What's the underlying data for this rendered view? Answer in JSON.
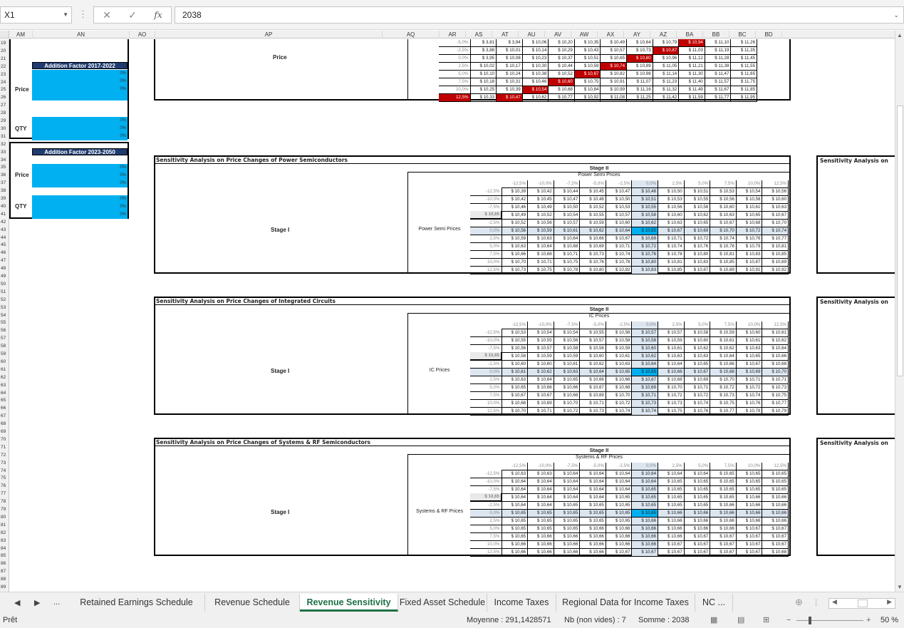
{
  "namebox": "X1",
  "formula": "2038",
  "formula_icons": {
    "cancel": "✕",
    "enter": "✓",
    "fx": "fx"
  },
  "columns": [
    "AM",
    "AN",
    "AO",
    "AP",
    "AQ",
    "AR",
    "AS",
    "AT",
    "AU",
    "AV",
    "AW",
    "AX",
    "AY",
    "AZ",
    "BA",
    "BB",
    "BC",
    "BD"
  ],
  "rows_start": 19,
  "rows_end": 89,
  "left": {
    "price_top": "Price",
    "addition1": "Addition Factor 2017-2022",
    "addition2": "Addition Factor 2023-2050",
    "price": "Price",
    "qty": "QTY",
    "zero": "0%"
  },
  "top": {
    "label": "Price",
    "rowhdr": [
      "-5,0%",
      "-2,5%",
      "0,0%",
      "2,5%",
      "5,0%",
      "7,5%",
      "10,0%",
      "12,5%"
    ],
    "rows": [
      [
        "$ 3,81",
        "$ 3,94",
        "$ 10,06",
        "$ 10,20",
        "$ 10,35",
        "$ 10,49",
        "$ 10,64",
        "$ 10,79",
        "$ 10,94",
        "$ 11,10",
        "$ 11,26"
      ],
      [
        "$ 3,88",
        "$ 10,01",
        "$ 10,14",
        "$ 10,29",
        "$ 10,43",
        "$ 10,57",
        "$ 10,73",
        "$ 10,87",
        "$ 11,03",
        "$ 11,19",
        "$ 11,35"
      ],
      [
        "$ 3,95",
        "$ 10,08",
        "$ 10,23",
        "$ 10,37",
        "$ 10,51",
        "$ 10,65",
        "$ 10,80",
        "$ 10,96",
        "$ 11,12",
        "$ 11,28",
        "$ 11,45"
      ],
      [
        "$ 10,02",
        "$ 10,17",
        "$ 10,30",
        "$ 10,44",
        "$ 10,59",
        "$ 10,74",
        "$ 10,89",
        "$ 11,05",
        "$ 11,21",
        "$ 11,38",
        "$ 11,55"
      ],
      [
        "$ 10,10",
        "$ 10,24",
        "$ 10,38",
        "$ 10,52",
        "$ 10,67",
        "$ 10,82",
        "$ 10,98",
        "$ 11,14",
        "$ 11,30",
        "$ 11,47",
        "$ 11,65"
      ],
      [
        "$ 10,18",
        "$ 10,31",
        "$ 10,46",
        "$ 10,60",
        "$ 10,75",
        "$ 10,91",
        "$ 11,07",
        "$ 11,23",
        "$ 11,40",
        "$ 11,57",
        "$ 11,75"
      ],
      [
        "$ 10,25",
        "$ 10,39",
        "$ 10,54",
        "$ 10,68",
        "$ 10,84",
        "$ 10,99",
        "$ 11,16",
        "$ 11,32",
        "$ 11,49",
        "$ 11,67",
        "$ 11,85"
      ],
      [
        "$ 10,33",
        "$ 10,47",
        "$ 10,62",
        "$ 10,77",
        "$ 10,92",
        "$ 11,08",
        "$ 11,25",
        "$ 11,42",
        "$ 11,59",
        "$ 11,77",
        "$ 11,95"
      ]
    ],
    "red": [
      [
        0,
        8
      ],
      [
        1,
        7
      ],
      [
        2,
        6
      ],
      [
        3,
        5
      ],
      [
        4,
        4
      ],
      [
        5,
        3
      ],
      [
        6,
        2
      ],
      [
        7,
        1
      ]
    ]
  },
  "sections": [
    {
      "title": "Sensitivity Analysis on Price Changes of Power Semiconductors",
      "stage2": "Stage II",
      "sub": "Power Semi Prices",
      "stage1": "Stage I",
      "side": "Power Semi Prices",
      "corner": "$ 10,65",
      "colhdr": [
        "-12,5%",
        "-10,0%",
        "-7,5%",
        "-5,0%",
        "-2,5%",
        "0,0%",
        "2,5%",
        "5,0%",
        "7,5%",
        "10,0%",
        "12,5%"
      ],
      "rowhdr": [
        "-12,5%",
        "-10,0%",
        "-7,5%",
        "-5,0%",
        "-2,5%",
        "0,0%",
        "2,5%",
        "5,0%",
        "7,5%",
        "10,0%",
        "12,5%"
      ],
      "rows": [
        [
          "$ 10,39",
          "$ 10,42",
          "$ 10,44",
          "$ 10,45",
          "$ 10,47",
          "$ 10,48",
          "$ 10,50",
          "$ 10,51",
          "$ 10,53",
          "$ 10,54",
          "$ 10,56"
        ],
        [
          "$ 10,42",
          "$ 10,45",
          "$ 10,47",
          "$ 10,48",
          "$ 10,50",
          "$ 10,51",
          "$ 10,53",
          "$ 10,55",
          "$ 10,56",
          "$ 10,58",
          "$ 10,60"
        ],
        [
          "$ 10,46",
          "$ 10,49",
          "$ 10,50",
          "$ 10,52",
          "$ 10,53",
          "$ 10,55",
          "$ 10,56",
          "$ 10,58",
          "$ 10,60",
          "$ 10,61",
          "$ 10,63"
        ],
        [
          "$ 10,49",
          "$ 10,52",
          "$ 10,54",
          "$ 10,55",
          "$ 10,57",
          "$ 10,58",
          "$ 10,60",
          "$ 10,62",
          "$ 10,63",
          "$ 10,65",
          "$ 10,67"
        ],
        [
          "$ 10,52",
          "$ 10,56",
          "$ 10,57",
          "$ 10,59",
          "$ 10,60",
          "$ 10,62",
          "$ 10,63",
          "$ 10,65",
          "$ 10,67",
          "$ 10,68",
          "$ 10,70"
        ],
        [
          "$ 10,56",
          "$ 10,59",
          "$ 10,61",
          "$ 10,62",
          "$ 10,64",
          "$ 10,65",
          "$ 10,67",
          "$ 10,69",
          "$ 10,70",
          "$ 10,72",
          "$ 10,74"
        ],
        [
          "$ 10,59",
          "$ 10,63",
          "$ 10,64",
          "$ 10,66",
          "$ 10,67",
          "$ 10,69",
          "$ 10,71",
          "$ 10,72",
          "$ 10,74",
          "$ 10,76",
          "$ 10,77"
        ],
        [
          "$ 10,63",
          "$ 10,64",
          "$ 10,68",
          "$ 10,69",
          "$ 10,71",
          "$ 10,72",
          "$ 10,74",
          "$ 10,76",
          "$ 10,78",
          "$ 10,79",
          "$ 10,81"
        ],
        [
          "$ 10,66",
          "$ 10,68",
          "$ 10,71",
          "$ 10,73",
          "$ 10,74",
          "$ 10,76",
          "$ 10,78",
          "$ 10,80",
          "$ 10,81",
          "$ 10,83",
          "$ 10,85"
        ],
        [
          "$ 10,70",
          "$ 10,71",
          "$ 10,75",
          "$ 10,76",
          "$ 10,78",
          "$ 10,80",
          "$ 10,81",
          "$ 10,83",
          "$ 10,85",
          "$ 10,87",
          "$ 10,89"
        ],
        [
          "$ 10,73",
          "$ 10,75",
          "$ 10,78",
          "$ 10,80",
          "$ 10,82",
          "$ 10,83",
          "$ 10,85",
          "$ 10,87",
          "$ 10,89",
          "$ 10,91",
          "$ 10,92"
        ]
      ]
    },
    {
      "title": "Sensitivity Analysis on Price Changes of Integrated Circuits",
      "stage2": "Stage II",
      "sub": "IC Prices",
      "stage1": "Stage I",
      "side": "IC Prices",
      "corner": "$ 10,65",
      "colhdr": [
        "-12,5%",
        "-10,0%",
        "-7,5%",
        "-5,0%",
        "-2,5%",
        "0,0%",
        "2,5%",
        "5,0%",
        "7,5%",
        "10,0%",
        "12,5%"
      ],
      "rowhdr": [
        "-12,5%",
        "-10,0%",
        "-7,5%",
        "-5,0%",
        "-2,5%",
        "0,0%",
        "2,5%",
        "5,0%",
        "7,5%",
        "10,0%",
        "12,5%"
      ],
      "rows": [
        [
          "$ 10,53",
          "$ 10,54",
          "$ 10,54",
          "$ 10,55",
          "$ 10,56",
          "$ 10,57",
          "$ 10,57",
          "$ 10,58",
          "$ 10,59",
          "$ 10,60",
          "$ 10,61"
        ],
        [
          "$ 10,55",
          "$ 10,55",
          "$ 10,56",
          "$ 10,57",
          "$ 10,58",
          "$ 10,58",
          "$ 10,59",
          "$ 10,60",
          "$ 10,61",
          "$ 10,61",
          "$ 10,62"
        ],
        [
          "$ 10,56",
          "$ 10,57",
          "$ 10,58",
          "$ 10,58",
          "$ 10,59",
          "$ 10,60",
          "$ 10,61",
          "$ 10,62",
          "$ 10,62",
          "$ 10,63",
          "$ 10,64"
        ],
        [
          "$ 10,58",
          "$ 10,59",
          "$ 10,59",
          "$ 10,60",
          "$ 10,61",
          "$ 10,62",
          "$ 10,63",
          "$ 10,63",
          "$ 10,64",
          "$ 10,65",
          "$ 10,66"
        ],
        [
          "$ 10,60",
          "$ 10,60",
          "$ 10,61",
          "$ 10,62",
          "$ 10,63",
          "$ 10,64",
          "$ 10,64",
          "$ 10,65",
          "$ 10,66",
          "$ 10,67",
          "$ 10,68"
        ],
        [
          "$ 10,61",
          "$ 10,62",
          "$ 10,63",
          "$ 10,64",
          "$ 10,65",
          "$ 10,65",
          "$ 10,66",
          "$ 10,67",
          "$ 10,68",
          "$ 10,69",
          "$ 10,70"
        ],
        [
          "$ 10,63",
          "$ 10,64",
          "$ 10,65",
          "$ 10,66",
          "$ 10,66",
          "$ 10,67",
          "$ 10,68",
          "$ 10,69",
          "$ 10,70",
          "$ 10,71",
          "$ 10,71"
        ],
        [
          "$ 10,65",
          "$ 10,66",
          "$ 10,66",
          "$ 10,67",
          "$ 10,68",
          "$ 10,69",
          "$ 10,70",
          "$ 10,71",
          "$ 10,72",
          "$ 10,72",
          "$ 10,73"
        ],
        [
          "$ 10,67",
          "$ 10,67",
          "$ 10,68",
          "$ 10,69",
          "$ 10,70",
          "$ 10,71",
          "$ 10,72",
          "$ 10,72",
          "$ 10,73",
          "$ 10,74",
          "$ 10,75"
        ],
        [
          "$ 10,68",
          "$ 10,69",
          "$ 10,70",
          "$ 10,71",
          "$ 10,72",
          "$ 10,73",
          "$ 10,73",
          "$ 10,74",
          "$ 10,75",
          "$ 10,76",
          "$ 10,77"
        ],
        [
          "$ 10,70",
          "$ 10,71",
          "$ 10,72",
          "$ 10,73",
          "$ 10,74",
          "$ 10,74",
          "$ 10,75",
          "$ 10,76",
          "$ 10,77",
          "$ 10,78",
          "$ 10,79"
        ]
      ]
    },
    {
      "title": "Sensitivity Analysis on Price Changes of Systems & RF Semiconductors",
      "stage2": "Stage II",
      "sub": "Systems & RF Prices",
      "stage1": "Stage I",
      "side": "Systems & RF Prices",
      "corner": "$ 10,65",
      "colhdr": [
        "-12,5%",
        "-10,0%",
        "-7,5%",
        "-5,0%",
        "-2,5%",
        "0,0%",
        "2,5%",
        "5,0%",
        "7,5%",
        "10,0%",
        "12,5%"
      ],
      "rowhdr": [
        "-12,5%",
        "-10,0%",
        "-7,5%",
        "-5,0%",
        "-2,5%",
        "0,0%",
        "2,5%",
        "5,0%",
        "7,5%",
        "10,0%",
        "12,5%"
      ],
      "rows": [
        [
          "$ 10,63",
          "$ 10,63",
          "$ 10,64",
          "$ 10,64",
          "$ 10,64",
          "$ 10,64",
          "$ 10,64",
          "$ 10,64",
          "$ 10,65",
          "$ 10,65",
          "$ 10,65"
        ],
        [
          "$ 10,64",
          "$ 10,64",
          "$ 10,64",
          "$ 10,64",
          "$ 10,64",
          "$ 10,64",
          "$ 10,65",
          "$ 10,65",
          "$ 10,65",
          "$ 10,65",
          "$ 10,65"
        ],
        [
          "$ 10,64",
          "$ 10,64",
          "$ 10,64",
          "$ 10,64",
          "$ 10,64",
          "$ 10,65",
          "$ 10,65",
          "$ 10,65",
          "$ 10,65",
          "$ 10,65",
          "$ 10,65"
        ],
        [
          "$ 10,64",
          "$ 10,64",
          "$ 10,64",
          "$ 10,64",
          "$ 10,65",
          "$ 10,65",
          "$ 10,65",
          "$ 10,65",
          "$ 10,65",
          "$ 10,66",
          "$ 10,66"
        ],
        [
          "$ 10,64",
          "$ 10,64",
          "$ 10,65",
          "$ 10,65",
          "$ 10,65",
          "$ 10,65",
          "$ 10,65",
          "$ 10,65",
          "$ 10,66",
          "$ 10,66",
          "$ 10,66"
        ],
        [
          "$ 10,65",
          "$ 10,65",
          "$ 10,65",
          "$ 10,65",
          "$ 10,65",
          "$ 10,65",
          "$ 10,66",
          "$ 10,66",
          "$ 10,66",
          "$ 10,66",
          "$ 10,66"
        ],
        [
          "$ 10,65",
          "$ 10,65",
          "$ 10,65",
          "$ 10,65",
          "$ 10,65",
          "$ 10,66",
          "$ 10,66",
          "$ 10,66",
          "$ 10,66",
          "$ 10,66",
          "$ 10,66"
        ],
        [
          "$ 10,65",
          "$ 10,65",
          "$ 10,65",
          "$ 10,66",
          "$ 10,66",
          "$ 10,66",
          "$ 10,66",
          "$ 10,66",
          "$ 10,66",
          "$ 10,67",
          "$ 10,67"
        ],
        [
          "$ 10,65",
          "$ 10,66",
          "$ 10,66",
          "$ 10,66",
          "$ 10,66",
          "$ 10,66",
          "$ 10,66",
          "$ 10,67",
          "$ 10,67",
          "$ 10,67",
          "$ 10,67"
        ],
        [
          "$ 10,66",
          "$ 10,66",
          "$ 10,66",
          "$ 10,66",
          "$ 10,66",
          "$ 10,66",
          "$ 10,67",
          "$ 10,67",
          "$ 10,67",
          "$ 10,67",
          "$ 10,67"
        ],
        [
          "$ 10,66",
          "$ 10,66",
          "$ 10,66",
          "$ 10,66",
          "$ 10,67",
          "$ 10,67",
          "$ 10,67",
          "$ 10,67",
          "$ 10,67",
          "$ 10,67",
          "$ 10,68"
        ]
      ]
    }
  ],
  "right_titles": "Sensitivity Analysis on",
  "tabs": [
    "Retained Earnings Schedule",
    "Revenue Schedule",
    "Revenue Sensitivity",
    "Fixed Asset Schedule",
    "Income Taxes",
    "Regional Data for Income Taxes",
    "NC ..."
  ],
  "active_tab": "Revenue Sensitivity",
  "tabnav": {
    "prev": "◀",
    "next": "▶",
    "more": "..."
  },
  "status": {
    "ready": "Prêt",
    "avg": "Moyenne : 291,1428571",
    "count": "Nb (non vides) : 7",
    "sum": "Somme : 2038",
    "zoom": "50 %"
  }
}
